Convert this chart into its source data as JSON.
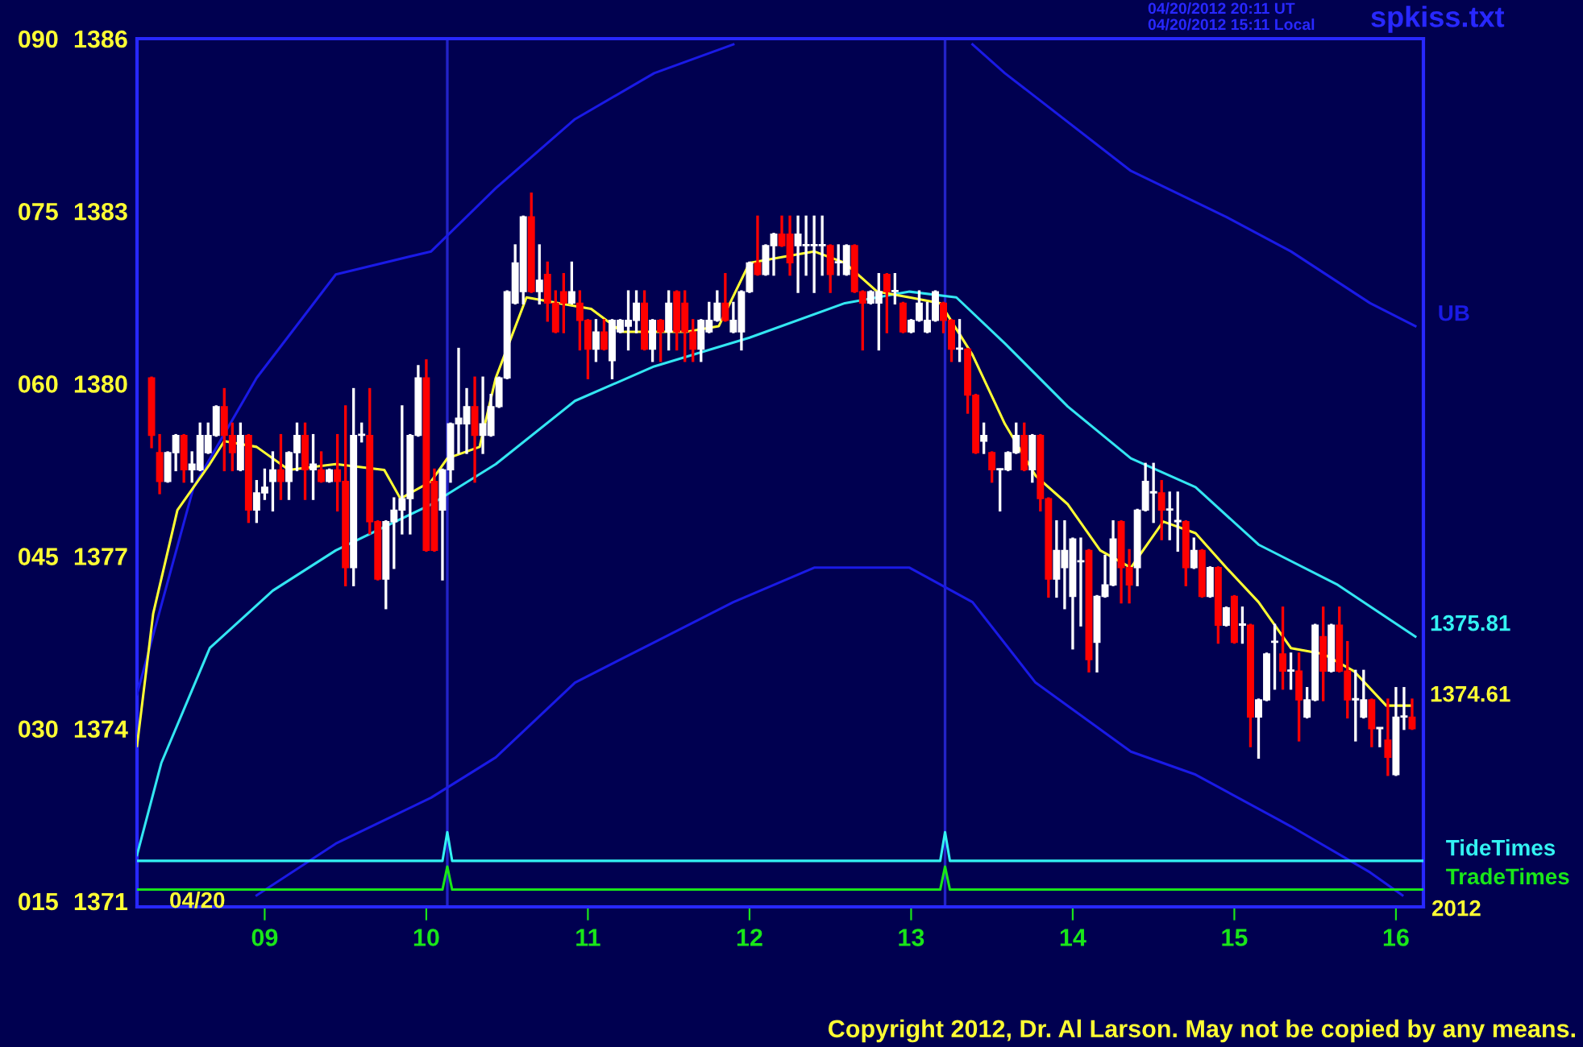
{
  "chart_data": {
    "type": "candlestick",
    "x": [
      8.3,
      8.35,
      8.4,
      8.45,
      8.5,
      8.55,
      8.6,
      8.65,
      8.7,
      8.75,
      8.8,
      8.85,
      8.9,
      8.95,
      9.0,
      9.05,
      9.1,
      9.15,
      9.2,
      9.25,
      9.3,
      9.35,
      9.4,
      9.45,
      9.5,
      9.55,
      9.6,
      9.65,
      9.7,
      9.75,
      9.8,
      9.85,
      9.9,
      9.95,
      10.0,
      10.05,
      10.1,
      10.15,
      10.2,
      10.25,
      10.3,
      10.35,
      10.4,
      10.45,
      10.5,
      10.55,
      10.6,
      10.65,
      10.7,
      10.75,
      10.8,
      10.85,
      10.9,
      10.95,
      11.0,
      11.05,
      11.1,
      11.15,
      11.2,
      11.25,
      11.3,
      11.35,
      11.4,
      11.45,
      11.5,
      11.55,
      11.6,
      11.65,
      11.7,
      11.75,
      11.8,
      11.85,
      11.9,
      11.95,
      12.0,
      12.05,
      12.1,
      12.15,
      12.2,
      12.25,
      12.3,
      12.35,
      12.4,
      12.45,
      12.5,
      12.55,
      12.6,
      12.65,
      12.7,
      12.75,
      12.8,
      12.85,
      12.9,
      12.95,
      13.0,
      13.05,
      13.1,
      13.15,
      13.2,
      13.25,
      13.3,
      13.35,
      13.4,
      13.45,
      13.5,
      13.55,
      13.6,
      13.65,
      13.7,
      13.75,
      13.8,
      13.85,
      13.9,
      13.95,
      14.0,
      14.05,
      14.1,
      14.15,
      14.2,
      14.25,
      14.3,
      14.35,
      14.4,
      14.45,
      14.5,
      14.55,
      14.6,
      14.65,
      14.7,
      14.75,
      14.8,
      14.85,
      14.9,
      14.95,
      15.0,
      15.05,
      15.1,
      15.15,
      15.2,
      15.25,
      15.3,
      15.35,
      15.4,
      15.45,
      15.5,
      15.55,
      15.6,
      15.65,
      15.7,
      15.75,
      15.8,
      15.85,
      15.9,
      15.95,
      16.0,
      16.05,
      16.1
    ],
    "ohlc": [
      [
        1380.1,
        1380.1,
        1378.9,
        1379.1
      ],
      [
        1378.8,
        1379.1,
        1378.1,
        1378.3
      ],
      [
        1378.3,
        1378.8,
        1378.3,
        1378.8
      ],
      [
        1378.8,
        1379.1,
        1378.5,
        1379.1
      ],
      [
        1379.1,
        1379.1,
        1378.3,
        1378.5
      ],
      [
        1378.5,
        1378.8,
        1378.3,
        1378.6
      ],
      [
        1378.5,
        1379.3,
        1378.5,
        1379.1
      ],
      [
        1378.8,
        1379.3,
        1378.8,
        1379.1
      ],
      [
        1379.1,
        1379.6,
        1379.1,
        1379.6
      ],
      [
        1379.6,
        1379.9,
        1378.5,
        1379.1
      ],
      [
        1379.1,
        1379.3,
        1378.5,
        1378.8
      ],
      [
        1378.5,
        1379.3,
        1378.5,
        1379.1
      ],
      [
        1379.1,
        1379.1,
        1377.6,
        1377.8
      ],
      [
        1377.8,
        1378.3,
        1377.6,
        1378.1
      ],
      [
        1378.1,
        1378.5,
        1378.0,
        1378.2
      ],
      [
        1378.3,
        1378.8,
        1377.8,
        1378.5
      ],
      [
        1378.5,
        1379.1,
        1378.0,
        1378.3
      ],
      [
        1378.3,
        1378.8,
        1378.0,
        1378.8
      ],
      [
        1378.8,
        1379.3,
        1378.5,
        1379.1
      ],
      [
        1379.1,
        1379.3,
        1378.0,
        1378.5
      ],
      [
        1378.5,
        1379.1,
        1378.0,
        1378.6
      ],
      [
        1378.5,
        1378.8,
        1378.3,
        1378.3
      ],
      [
        1378.3,
        1378.5,
        1378.3,
        1378.5
      ],
      [
        1378.5,
        1379.1,
        1377.8,
        1378.3
      ],
      [
        1378.3,
        1379.6,
        1376.5,
        1376.8
      ],
      [
        1376.8,
        1379.9,
        1376.5,
        1379.1
      ],
      [
        1379.1,
        1379.3,
        1379.0,
        1379.1
      ],
      [
        1379.1,
        1379.9,
        1377.4,
        1377.6
      ],
      [
        1377.6,
        1377.6,
        1376.6,
        1376.6
      ],
      [
        1376.6,
        1377.6,
        1376.1,
        1377.6
      ],
      [
        1377.6,
        1378.0,
        1376.8,
        1377.8
      ],
      [
        1377.8,
        1379.6,
        1377.4,
        1378.0
      ],
      [
        1378.0,
        1379.1,
        1377.4,
        1379.1
      ],
      [
        1379.1,
        1380.3,
        1379.1,
        1380.1
      ],
      [
        1380.1,
        1380.4,
        1377.1,
        1377.1
      ],
      [
        1378.3,
        1378.5,
        1377.1,
        1377.1
      ],
      [
        1377.8,
        1378.5,
        1376.6,
        1378.5
      ],
      [
        1378.5,
        1379.3,
        1378.3,
        1379.3
      ],
      [
        1379.3,
        1380.6,
        1378.8,
        1379.4
      ],
      [
        1379.3,
        1379.9,
        1378.8,
        1379.6
      ],
      [
        1379.6,
        1380.1,
        1378.3,
        1379.1
      ],
      [
        1379.1,
        1380.1,
        1378.8,
        1379.3
      ],
      [
        1379.1,
        1379.8,
        1379.1,
        1379.6
      ],
      [
        1379.6,
        1380.1,
        1379.6,
        1380.1
      ],
      [
        1380.1,
        1381.6,
        1380.1,
        1381.6
      ],
      [
        1381.4,
        1382.4,
        1381.4,
        1382.1
      ],
      [
        1381.6,
        1382.9,
        1381.4,
        1382.9
      ],
      [
        1382.9,
        1383.3,
        1381.6,
        1381.6
      ],
      [
        1381.6,
        1382.4,
        1381.4,
        1381.8
      ],
      [
        1381.9,
        1382.1,
        1381.1,
        1381.4
      ],
      [
        1381.4,
        1381.6,
        1380.9,
        1380.9
      ],
      [
        1381.6,
        1381.9,
        1380.9,
        1381.4
      ],
      [
        1381.4,
        1382.1,
        1381.4,
        1381.6
      ],
      [
        1381.4,
        1381.6,
        1380.6,
        1381.1
      ],
      [
        1381.1,
        1381.1,
        1380.1,
        1380.6
      ],
      [
        1380.6,
        1381.1,
        1380.4,
        1380.9
      ],
      [
        1380.9,
        1381.1,
        1380.6,
        1380.6
      ],
      [
        1380.4,
        1381.1,
        1380.1,
        1381.1
      ],
      [
        1380.9,
        1381.1,
        1380.9,
        1381.1
      ],
      [
        1381.0,
        1381.6,
        1380.6,
        1381.1
      ],
      [
        1381.1,
        1381.6,
        1380.9,
        1381.4
      ],
      [
        1381.4,
        1381.6,
        1380.6,
        1380.6
      ],
      [
        1380.6,
        1381.1,
        1380.4,
        1381.1
      ],
      [
        1381.1,
        1381.1,
        1380.4,
        1380.9
      ],
      [
        1380.9,
        1381.6,
        1380.6,
        1381.4
      ],
      [
        1381.6,
        1381.6,
        1380.6,
        1380.9
      ],
      [
        1381.4,
        1381.6,
        1380.4,
        1380.9
      ],
      [
        1380.9,
        1381.1,
        1380.4,
        1380.6
      ],
      [
        1380.6,
        1381.1,
        1380.4,
        1381.1
      ],
      [
        1380.9,
        1381.4,
        1380.9,
        1381.1
      ],
      [
        1381.1,
        1381.6,
        1381.1,
        1381.4
      ],
      [
        1381.4,
        1381.9,
        1381.1,
        1381.1
      ],
      [
        1380.9,
        1381.4,
        1380.9,
        1381.1
      ],
      [
        1380.9,
        1381.6,
        1380.6,
        1381.6
      ],
      [
        1381.6,
        1382.1,
        1381.6,
        1382.1
      ],
      [
        1382.1,
        1382.9,
        1381.9,
        1381.9
      ],
      [
        1381.9,
        1382.4,
        1381.9,
        1382.4
      ],
      [
        1382.4,
        1382.6,
        1381.9,
        1382.6
      ],
      [
        1382.6,
        1382.9,
        1382.4,
        1382.4
      ],
      [
        1382.6,
        1382.9,
        1381.9,
        1382.1
      ],
      [
        1382.4,
        1382.9,
        1381.6,
        1382.6
      ],
      [
        1382.4,
        1382.9,
        1381.9,
        1382.4
      ],
      [
        1382.4,
        1382.9,
        1381.6,
        1382.4
      ],
      [
        1382.4,
        1382.9,
        1381.9,
        1382.4
      ],
      [
        1382.4,
        1382.4,
        1381.6,
        1381.9
      ],
      [
        1382.1,
        1382.4,
        1381.9,
        1382.1
      ],
      [
        1381.9,
        1382.4,
        1381.9,
        1382.4
      ],
      [
        1382.4,
        1382.4,
        1381.6,
        1381.6
      ],
      [
        1381.6,
        1381.6,
        1380.6,
        1381.4
      ],
      [
        1381.4,
        1381.6,
        1381.4,
        1381.6
      ],
      [
        1381.4,
        1381.9,
        1380.6,
        1381.6
      ],
      [
        1381.9,
        1381.9,
        1380.9,
        1381.6
      ],
      [
        1381.6,
        1381.9,
        1381.4,
        1381.6
      ],
      [
        1381.4,
        1381.4,
        1380.9,
        1380.9
      ],
      [
        1380.9,
        1381.1,
        1380.9,
        1381.1
      ],
      [
        1381.1,
        1381.6,
        1381.1,
        1381.4
      ],
      [
        1380.9,
        1381.4,
        1380.9,
        1381.1
      ],
      [
        1381.1,
        1381.6,
        1381.1,
        1381.6
      ],
      [
        1381.4,
        1381.4,
        1380.9,
        1381.1
      ],
      [
        1381.1,
        1381.1,
        1380.4,
        1380.6
      ],
      [
        1380.6,
        1381.1,
        1380.4,
        1380.6
      ],
      [
        1380.6,
        1380.6,
        1379.5,
        1379.8
      ],
      [
        1379.8,
        1379.8,
        1378.8,
        1378.8
      ],
      [
        1379.0,
        1379.3,
        1378.8,
        1379.1
      ],
      [
        1378.8,
        1378.8,
        1378.3,
        1378.5
      ],
      [
        1378.5,
        1378.5,
        1377.8,
        1378.5
      ],
      [
        1378.5,
        1378.8,
        1378.5,
        1378.8
      ],
      [
        1378.8,
        1379.3,
        1378.8,
        1379.1
      ],
      [
        1379.1,
        1379.3,
        1378.5,
        1378.5
      ],
      [
        1378.5,
        1379.1,
        1378.3,
        1379.1
      ],
      [
        1379.1,
        1379.1,
        1377.8,
        1378.0
      ],
      [
        1378.0,
        1378.0,
        1376.3,
        1376.6
      ],
      [
        1376.6,
        1377.6,
        1376.3,
        1377.1
      ],
      [
        1376.8,
        1377.6,
        1376.1,
        1377.1
      ],
      [
        1376.3,
        1377.3,
        1375.4,
        1377.3
      ],
      [
        1376.9,
        1377.3,
        1375.8,
        1376.9
      ],
      [
        1377.1,
        1377.1,
        1375.0,
        1375.2
      ],
      [
        1375.5,
        1376.3,
        1375.0,
        1376.3
      ],
      [
        1376.3,
        1377.0,
        1376.3,
        1376.5
      ],
      [
        1376.5,
        1377.6,
        1376.5,
        1377.3
      ],
      [
        1377.6,
        1377.6,
        1376.2,
        1376.8
      ],
      [
        1376.8,
        1377.1,
        1376.2,
        1376.5
      ],
      [
        1376.8,
        1377.8,
        1376.5,
        1377.8
      ],
      [
        1377.8,
        1378.6,
        1377.8,
        1378.3
      ],
      [
        1378.1,
        1378.6,
        1377.6,
        1378.1
      ],
      [
        1378.1,
        1378.3,
        1377.3,
        1377.8
      ],
      [
        1377.8,
        1378.1,
        1377.3,
        1377.8
      ],
      [
        1377.6,
        1378.1,
        1377.1,
        1377.6
      ],
      [
        1377.6,
        1377.6,
        1376.5,
        1376.8
      ],
      [
        1376.8,
        1377.3,
        1376.8,
        1377.1
      ],
      [
        1377.1,
        1377.1,
        1376.3,
        1376.3
      ],
      [
        1376.3,
        1376.8,
        1376.3,
        1376.8
      ],
      [
        1376.8,
        1376.8,
        1375.5,
        1375.8
      ],
      [
        1375.8,
        1376.1,
        1375.8,
        1376.1
      ],
      [
        1376.3,
        1376.3,
        1375.5,
        1375.5
      ],
      [
        1375.8,
        1376.1,
        1375.5,
        1375.8
      ],
      [
        1375.8,
        1375.8,
        1373.7,
        1374.2
      ],
      [
        1374.2,
        1374.5,
        1373.5,
        1374.5
      ],
      [
        1374.5,
        1375.3,
        1374.5,
        1375.3
      ],
      [
        1375.5,
        1375.8,
        1374.7,
        1375.5
      ],
      [
        1375.3,
        1376.1,
        1374.7,
        1375.0
      ],
      [
        1375.0,
        1375.3,
        1374.7,
        1375.0
      ],
      [
        1375.0,
        1375.3,
        1373.8,
        1374.5
      ],
      [
        1374.2,
        1374.7,
        1374.2,
        1374.5
      ],
      [
        1374.5,
        1375.8,
        1374.5,
        1375.8
      ],
      [
        1375.6,
        1376.1,
        1374.5,
        1375.0
      ],
      [
        1375.0,
        1375.8,
        1375.0,
        1375.8
      ],
      [
        1375.8,
        1376.1,
        1375.0,
        1375.0
      ],
      [
        1375.0,
        1375.5,
        1374.2,
        1374.5
      ],
      [
        1374.5,
        1375.0,
        1373.8,
        1374.5
      ],
      [
        1374.2,
        1375.0,
        1374.2,
        1374.5
      ],
      [
        1374.5,
        1374.5,
        1373.7,
        1374.0
      ],
      [
        1374.0,
        1374.0,
        1373.7,
        1374.0
      ],
      [
        1373.8,
        1374.5,
        1373.2,
        1373.5
      ],
      [
        1373.2,
        1374.7,
        1373.2,
        1374.2
      ],
      [
        1374.2,
        1374.7,
        1374.0,
        1374.2
      ],
      [
        1374.2,
        1374.5,
        1374.0,
        1374.0
      ]
    ],
    "series": [
      {
        "type": "line",
        "name": "UB",
        "color": "#1a1ae6",
        "x": [
          8.21,
          8.56,
          8.95,
          9.44,
          10.03,
          10.43,
          10.92,
          11.41,
          11.9,
          12.6,
          13.38,
          13.58,
          14.36,
          14.95,
          15.35,
          15.84,
          16.12
        ],
        "values": [
          1374.6,
          1378.2,
          1380.1,
          1381.9,
          1382.3,
          1383.4,
          1384.6,
          1385.4,
          1385.9,
          null,
          1385.9,
          1385.4,
          1383.7,
          1382.9,
          1382.3,
          1381.4,
          1381.0
        ]
      },
      {
        "type": "line",
        "color": "#1a1ae6",
        "x": [
          8.95,
          9.44,
          10.03,
          10.43,
          10.92,
          11.41,
          11.9,
          12.4,
          12.99,
          13.38,
          13.77,
          14.36,
          14.76,
          15.35,
          15.84,
          16.04
        ],
        "values": [
          1371.1,
          1372.0,
          1372.8,
          1373.5,
          1374.8,
          1375.5,
          1376.2,
          1376.8,
          1376.8,
          1376.2,
          1374.8,
          1373.6,
          1373.2,
          1372.3,
          1371.5,
          1371.1
        ]
      },
      {
        "type": "line",
        "color": "#33e6f2",
        "x": [
          8.21,
          8.36,
          8.66,
          9.05,
          9.44,
          10.03,
          10.43,
          10.92,
          11.41,
          12.0,
          12.59,
          12.99,
          13.28,
          13.58,
          13.97,
          14.36,
          14.76,
          15.15,
          15.64,
          16.12
        ],
        "values": [
          1371.8,
          1373.4,
          1375.4,
          1376.4,
          1377.1,
          1377.9,
          1378.6,
          1379.7,
          1380.3,
          1380.8,
          1381.4,
          1381.6,
          1381.5,
          1380.7,
          1379.6,
          1378.7,
          1378.2,
          1377.2,
          1376.5,
          1375.6
        ]
      },
      {
        "type": "line",
        "color": "#ffff33",
        "x": [
          8.21,
          8.31,
          8.46,
          8.66,
          8.75,
          8.95,
          9.15,
          9.44,
          9.74,
          9.84,
          10.03,
          10.13,
          10.33,
          10.43,
          10.62,
          10.82,
          11.02,
          11.21,
          11.41,
          11.61,
          11.81,
          12.0,
          12.2,
          12.4,
          12.59,
          12.79,
          12.99,
          13.18,
          13.38,
          13.58,
          13.77,
          13.97,
          14.17,
          14.36,
          14.56,
          14.76,
          14.95,
          15.15,
          15.35,
          15.55,
          15.74,
          15.94,
          16.09
        ],
        "values": [
          1373.7,
          1376.0,
          1377.8,
          1378.6,
          1379.0,
          1378.9,
          1378.5,
          1378.6,
          1378.5,
          1378.0,
          1378.3,
          1378.7,
          1378.9,
          1380.1,
          1381.5,
          1381.4,
          1381.3,
          1380.9,
          1380.9,
          1380.9,
          1381.0,
          1382.1,
          1382.2,
          1382.3,
          1382.1,
          1381.6,
          1381.5,
          1381.4,
          1380.5,
          1379.3,
          1378.4,
          1377.9,
          1377.1,
          1376.8,
          1377.6,
          1377.4,
          1376.8,
          1376.2,
          1375.4,
          1375.3,
          1375.0,
          1374.4,
          1374.4
        ]
      },
      {
        "type": "line",
        "name": "TideTimes",
        "color": "#33f2f2",
        "x": [
          8.21,
          10.1,
          10.13,
          10.16,
          13.18,
          13.21,
          13.24,
          16.17
        ],
        "values": [
          1371.7,
          1371.7,
          1372.2,
          1371.7,
          1371.7,
          1372.2,
          1371.7,
          1371.7
        ]
      },
      {
        "type": "line",
        "name": "TradeTimes",
        "color": "#19e619",
        "x": [
          8.21,
          10.1,
          10.13,
          10.16,
          13.18,
          13.21,
          13.24,
          16.17
        ],
        "values": [
          1371.2,
          1371.2,
          1371.6,
          1371.2,
          1371.2,
          1371.6,
          1371.2,
          1371.2
        ]
      }
    ],
    "ref_lines": [
      {
        "axis": "x",
        "value": 10.13,
        "color": "#2323c8"
      },
      {
        "axis": "x",
        "value": 13.21,
        "color": "#2323c8"
      }
    ],
    "annotations": [
      "04/20",
      "2012",
      "04/20/2012 20:11 UT",
      "04/20/2012 15:11 Local",
      "spkiss.txt",
      "Copyright 2012, Dr. Al Larson. May not be copied by any means.",
      "1375.81",
      "1374.61"
    ],
    "xlim": [
      8.21,
      16.17
    ],
    "ylim": [
      1370.9,
      1386.0
    ],
    "xticks": [
      {
        "value": 9,
        "label": "09"
      },
      {
        "value": 10,
        "label": "10"
      },
      {
        "value": 11,
        "label": "11"
      },
      {
        "value": 12,
        "label": "12"
      },
      {
        "value": 13,
        "label": "13"
      },
      {
        "value": 14,
        "label": "14"
      },
      {
        "value": 15,
        "label": "15"
      },
      {
        "value": 16,
        "label": "16"
      }
    ],
    "yticks": [
      1371,
      1374,
      1377,
      1380,
      1383,
      1386
    ],
    "y2lim": [
      14.5,
      90
    ],
    "y2ticks": [
      {
        "value": 15,
        "label": "015"
      },
      {
        "value": 30,
        "label": "030"
      },
      {
        "value": 45,
        "label": "045"
      },
      {
        "value": 60,
        "label": "060"
      },
      {
        "value": 75,
        "label": "075"
      },
      {
        "value": 90,
        "label": "090"
      }
    ]
  }
}
